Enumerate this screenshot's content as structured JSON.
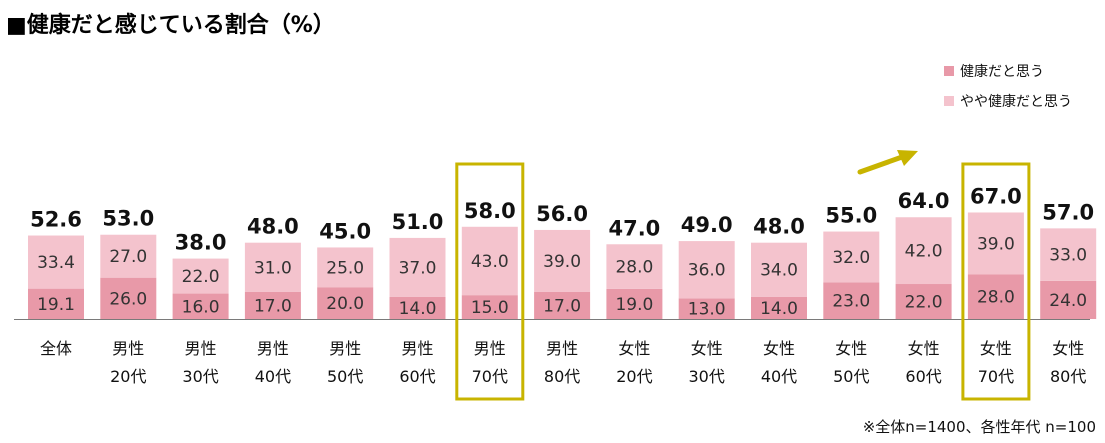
{
  "chart_data": {
    "type": "bar",
    "stacked": true,
    "title": "■健康だと感じている割合（%）",
    "categories": [
      [
        "全体"
      ],
      [
        "男性",
        "20代"
      ],
      [
        "男性",
        "30代"
      ],
      [
        "男性",
        "40代"
      ],
      [
        "男性",
        "50代"
      ],
      [
        "男性",
        "60代"
      ],
      [
        "男性",
        "70代"
      ],
      [
        "男性",
        "80代"
      ],
      [
        "女性",
        "20代"
      ],
      [
        "女性",
        "30代"
      ],
      [
        "女性",
        "40代"
      ],
      [
        "女性",
        "50代"
      ],
      [
        "女性",
        "60代"
      ],
      [
        "女性",
        "70代"
      ],
      [
        "女性",
        "80代"
      ]
    ],
    "series": [
      {
        "name": "健康だと思う",
        "values": [
          19.1,
          26.0,
          16.0,
          17.0,
          20.0,
          14.0,
          15.0,
          17.0,
          19.0,
          13.0,
          14.0,
          23.0,
          22.0,
          28.0,
          24.0
        ]
      },
      {
        "name": "やや健康だと思う",
        "values": [
          33.4,
          27.0,
          22.0,
          31.0,
          25.0,
          37.0,
          43.0,
          39.0,
          28.0,
          36.0,
          34.0,
          32.0,
          42.0,
          39.0,
          33.0
        ]
      }
    ],
    "totals": [
      52.6,
      53.0,
      38.0,
      48.0,
      45.0,
      51.0,
      58.0,
      56.0,
      47.0,
      49.0,
      48.0,
      55.0,
      64.0,
      67.0,
      57.0
    ],
    "highlighted": [
      6,
      13
    ],
    "legend_position": "top-right",
    "note": "※全体n=1400、各性年代 n=100",
    "colors": {
      "series_1": "#e899a8",
      "series_2": "#f4c3cd",
      "highlight_box": "#c8b400",
      "arrow": "#c8b400",
      "axis": "#7a7a7a"
    }
  }
}
